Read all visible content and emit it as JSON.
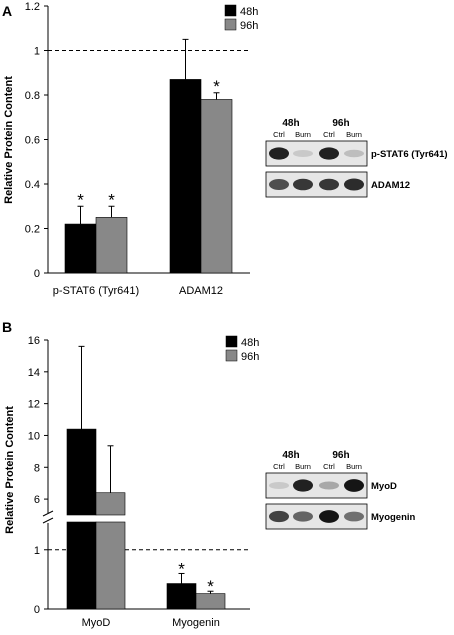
{
  "panels": [
    {
      "letter": "A",
      "chart_data": {
        "type": "bar",
        "ylabel": "Relative Protein Content",
        "ylim": [
          0,
          1.2
        ],
        "yticks": [
          "0",
          "0.2",
          "0.4",
          "0.6",
          "0.8",
          "1",
          "1.2"
        ],
        "categories": [
          "p-STAT6 (Tyr641)",
          "ADAM12"
        ],
        "series": [
          {
            "name": "48h",
            "color": "#000000",
            "values": [
              0.22,
              0.87
            ],
            "errors": [
              0.08,
              0.18
            ],
            "significant": [
              true,
              false
            ]
          },
          {
            "name": "96h",
            "color": "#888888",
            "values": [
              0.25,
              0.78
            ],
            "errors": [
              0.05,
              0.03
            ],
            "significant": [
              true,
              true
            ]
          }
        ],
        "reference_line": 1,
        "significance_marker": "*"
      },
      "blot": {
        "time_labels": [
          "48h",
          "96h"
        ],
        "lane_labels": [
          "Ctrl",
          "Burn",
          "Ctrl",
          "Burn"
        ],
        "rows": [
          {
            "label": "p-STAT6 (Tyr641)",
            "intensities": [
              0.9,
              0.15,
              0.9,
              0.2
            ]
          },
          {
            "label": "ADAM12",
            "intensities": [
              0.7,
              0.8,
              0.8,
              0.85
            ]
          }
        ]
      }
    },
    {
      "letter": "B",
      "chart_data": {
        "type": "bar",
        "ylabel": "Relative Protein Content",
        "broken_axis": true,
        "lower_ylim": [
          0,
          1
        ],
        "upper_ylim": [
          5,
          16
        ],
        "yticks": [
          "0",
          "1",
          "6",
          "8",
          "10",
          "12",
          "14",
          "16"
        ],
        "categories": [
          "MyoD",
          "Myogenin"
        ],
        "series": [
          {
            "name": "48h",
            "color": "#000000",
            "values": [
              10.4,
              0.43
            ],
            "errors": [
              5.2,
              0.17
            ],
            "significant": [
              false,
              true
            ]
          },
          {
            "name": "96h",
            "color": "#888888",
            "values": [
              6.4,
              0.26
            ],
            "errors": [
              2.95,
              0.04
            ],
            "significant": [
              false,
              true
            ]
          }
        ],
        "reference_line": 1,
        "significance_marker": "*"
      },
      "blot": {
        "time_labels": [
          "48h",
          "96h"
        ],
        "lane_labels": [
          "Ctrl",
          "Burn",
          "Ctrl",
          "Burn"
        ],
        "rows": [
          {
            "label": "MyoD",
            "intensities": [
              0.15,
              0.9,
              0.3,
              0.95
            ]
          },
          {
            "label": "Myogenin",
            "intensities": [
              0.75,
              0.6,
              0.95,
              0.55
            ]
          }
        ]
      }
    }
  ]
}
